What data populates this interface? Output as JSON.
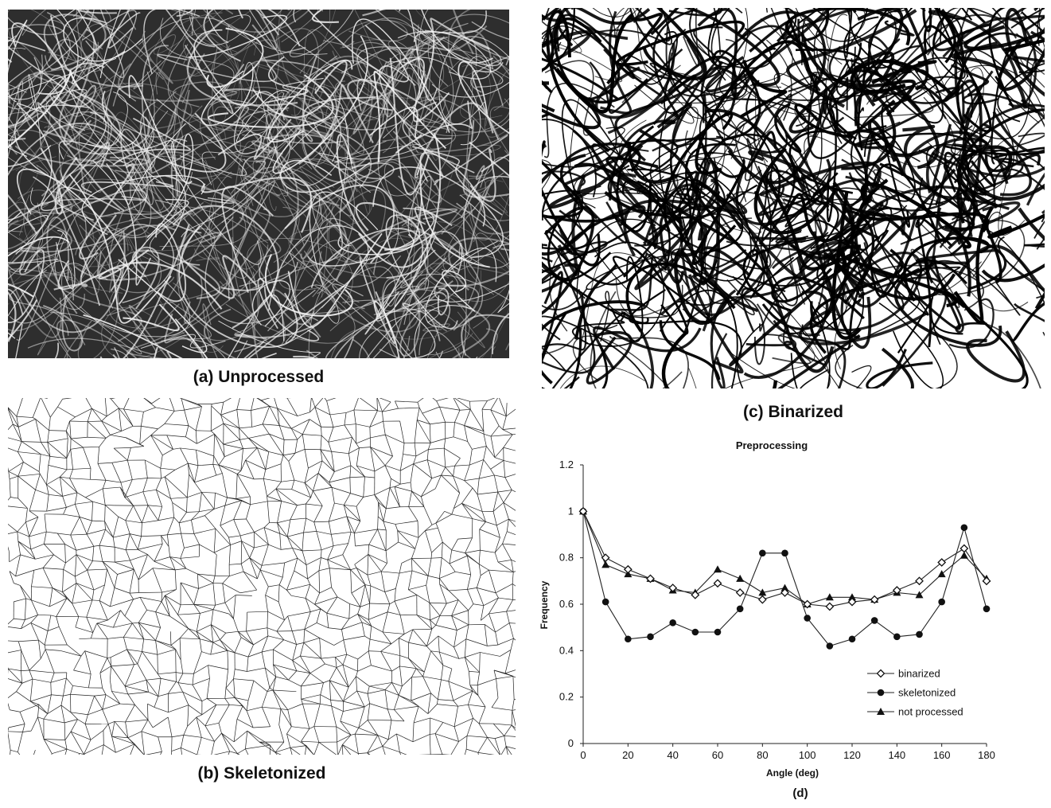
{
  "panels": {
    "a": {
      "caption": "(a) Unprocessed"
    },
    "b": {
      "caption": "(b) Skeletonized"
    },
    "c": {
      "caption": "(c) Binarized"
    },
    "d": {
      "caption": "(d)"
    }
  },
  "chart_data": {
    "type": "line",
    "title": "Preprocessing",
    "xlabel": "Angle (deg)",
    "ylabel": "Frequency",
    "xlim": [
      0,
      180
    ],
    "ylim": [
      0,
      1.2
    ],
    "xticks": [
      "0",
      "20",
      "40",
      "60",
      "80",
      "100",
      "120",
      "140",
      "160",
      "180"
    ],
    "yticks": [
      "0",
      "0.2",
      "0.4",
      "0.6",
      "0.8",
      "1",
      "1.2"
    ],
    "grid": false,
    "legend_position": "lower-right",
    "x": [
      0,
      10,
      20,
      30,
      40,
      50,
      60,
      70,
      80,
      90,
      100,
      110,
      120,
      130,
      140,
      150,
      160,
      170,
      180
    ],
    "series": [
      {
        "name": "binarized",
        "marker": "open-diamond",
        "values": [
          1.0,
          0.8,
          0.75,
          0.71,
          0.67,
          0.64,
          0.69,
          0.65,
          0.62,
          0.65,
          0.6,
          0.59,
          0.61,
          0.62,
          0.66,
          0.7,
          0.78,
          0.84,
          0.7
        ]
      },
      {
        "name": "skeletonized",
        "marker": "filled-circle",
        "values": [
          1.0,
          0.61,
          0.45,
          0.46,
          0.52,
          0.48,
          0.48,
          0.58,
          0.82,
          0.82,
          0.54,
          0.42,
          0.45,
          0.53,
          0.46,
          0.47,
          0.61,
          0.93,
          0.58
        ]
      },
      {
        "name": "not processed",
        "marker": "filled-triangle",
        "values": [
          1.0,
          0.77,
          0.73,
          0.71,
          0.66,
          0.65,
          0.75,
          0.71,
          0.65,
          0.67,
          0.6,
          0.63,
          0.63,
          0.62,
          0.65,
          0.64,
          0.73,
          0.81,
          0.71
        ]
      }
    ]
  }
}
